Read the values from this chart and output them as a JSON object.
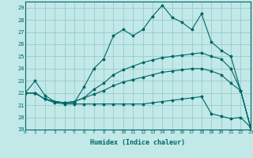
{
  "xlabel": "Humidex (Indice chaleur)",
  "background_color": "#c2e8e8",
  "grid_color": "#96cccc",
  "line_color": "#006666",
  "xlim": [
    0,
    23
  ],
  "ylim": [
    19,
    29.5
  ],
  "yticks": [
    19,
    20,
    21,
    22,
    23,
    24,
    25,
    26,
    27,
    28,
    29
  ],
  "xticks": [
    0,
    1,
    2,
    3,
    4,
    5,
    6,
    7,
    8,
    9,
    10,
    11,
    12,
    13,
    14,
    15,
    16,
    17,
    18,
    19,
    20,
    21,
    22,
    23
  ],
  "series": [
    [
      22.0,
      23.0,
      21.8,
      21.3,
      21.2,
      21.2,
      22.5,
      24.0,
      24.8,
      26.7,
      27.2,
      26.7,
      27.2,
      28.3,
      29.2,
      28.2,
      27.8,
      27.2,
      28.5,
      26.2,
      25.5,
      25.0,
      22.2,
      19.2
    ],
    [
      22.0,
      22.0,
      21.5,
      21.3,
      21.2,
      21.3,
      21.6,
      22.3,
      22.8,
      23.5,
      23.9,
      24.2,
      24.5,
      24.7,
      24.9,
      25.0,
      25.1,
      25.2,
      25.3,
      25.0,
      24.8,
      24.0,
      22.2,
      19.2
    ],
    [
      22.0,
      22.0,
      21.5,
      21.2,
      21.1,
      21.1,
      21.1,
      21.1,
      21.1,
      21.1,
      21.1,
      21.1,
      21.1,
      21.2,
      21.3,
      21.4,
      21.5,
      21.6,
      21.7,
      20.3,
      20.1,
      19.9,
      20.0,
      19.2
    ],
    [
      22.0,
      22.0,
      21.5,
      21.3,
      21.2,
      21.3,
      21.6,
      21.9,
      22.2,
      22.6,
      22.9,
      23.1,
      23.3,
      23.5,
      23.7,
      23.8,
      23.9,
      24.0,
      24.0,
      23.8,
      23.5,
      22.8,
      22.2,
      19.2
    ]
  ]
}
